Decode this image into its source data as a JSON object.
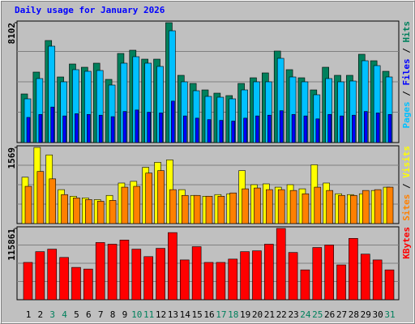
{
  "chart_data": [
    {
      "type": "bar",
      "title": "Daily usage for January 2026",
      "legend_separator": "/",
      "ylim": [
        0,
        8102
      ],
      "yticks": [
        8102
      ],
      "series": [
        {
          "name": "Pages",
          "color": "#00c0ff",
          "values": [
            2956,
            4325,
            6514,
            4106,
            4927,
            4817,
            4872,
            3887,
            5365,
            5803,
            5365,
            5146,
            7554,
            4106,
            3503,
            3120,
            3065,
            2956,
            3558,
            4106,
            4106,
            5693,
            4434,
            4106,
            3230,
            4325,
            4106,
            4160,
            5529,
            5201,
            4434
          ]
        },
        {
          "name": "Files",
          "color": "#0000ff",
          "values": [
            1700,
            1900,
            2400,
            1800,
            1950,
            1900,
            1850,
            1750,
            2100,
            2200,
            2050,
            2000,
            2800,
            1800,
            1650,
            1550,
            1500,
            1450,
            1650,
            1800,
            1850,
            2150,
            1900,
            1800,
            1600,
            1900,
            1800,
            1850,
            2100,
            2000,
            1900
          ]
        },
        {
          "name": "Hits",
          "color": "#00805c",
          "values": [
            3285,
            4763,
            6897,
            4434,
            5310,
            5091,
            5365,
            4270,
            6022,
            6241,
            5638,
            5638,
            8102,
            4544,
            3996,
            3558,
            3339,
            3175,
            3996,
            4379,
            4708,
            6186,
            4927,
            4379,
            3558,
            5091,
            4544,
            4544,
            5967,
            5529,
            4817
          ]
        }
      ]
    },
    {
      "type": "bar",
      "legend_separator": "/",
      "ylim": [
        0,
        1569
      ],
      "yticks": [
        1569
      ],
      "series": [
        {
          "name": "Sites",
          "color": "#ff8000",
          "values": [
            767,
            1074,
            921,
            597,
            529,
            494,
            460,
            477,
            750,
            767,
            1040,
            1091,
            699,
            580,
            580,
            563,
            563,
            631,
            716,
            733,
            699,
            699,
            682,
            614,
            750,
            682,
            580,
            580,
            682,
            699,
            750
          ]
        },
        {
          "name": "Visits",
          "color": "#ffff00",
          "values": [
            955,
            1569,
            1415,
            699,
            563,
            529,
            494,
            580,
            835,
            870,
            1159,
            1262,
            1313,
            699,
            580,
            563,
            597,
            614,
            1091,
            801,
            818,
            750,
            801,
            716,
            1211,
            835,
            614,
            597,
            614,
            682,
            750
          ]
        }
      ]
    },
    {
      "type": "bar",
      "ylim": [
        0,
        115861
      ],
      "yticks": [
        115861
      ],
      "categories": [
        "1",
        "2",
        "3",
        "4",
        "5",
        "6",
        "7",
        "8",
        "9",
        "10",
        "11",
        "12",
        "13",
        "14",
        "15",
        "16",
        "17",
        "18",
        "19",
        "20",
        "21",
        "22",
        "23",
        "24",
        "25",
        "26",
        "27",
        "28",
        "29",
        "30",
        "31"
      ],
      "category_colors": [
        "#000000",
        "#000000",
        "#00805c",
        "#00805c",
        "#000000",
        "#000000",
        "#000000",
        "#000000",
        "#000000",
        "#00805c",
        "#00805c",
        "#000000",
        "#000000",
        "#000000",
        "#000000",
        "#000000",
        "#00805c",
        "#00805c",
        "#000000",
        "#000000",
        "#000000",
        "#000000",
        "#000000",
        "#00805c",
        "#00805c",
        "#000000",
        "#000000",
        "#000000",
        "#000000",
        "#000000",
        "#00805c"
      ],
      "series": [
        {
          "name": "KBytes",
          "color": "#ff0000",
          "values": [
            60615,
            78126,
            82167,
            68697,
            52533,
            49839,
            92943,
            90249,
            96984,
            82167,
            70044,
            83514,
            109107,
            64656,
            86208,
            60615,
            60615,
            66003,
            78126,
            79473,
            90249,
            115861,
            76779,
            48492,
            84861,
            88902,
            56574,
            99678,
            74085,
            64656,
            48492
          ]
        }
      ]
    }
  ]
}
